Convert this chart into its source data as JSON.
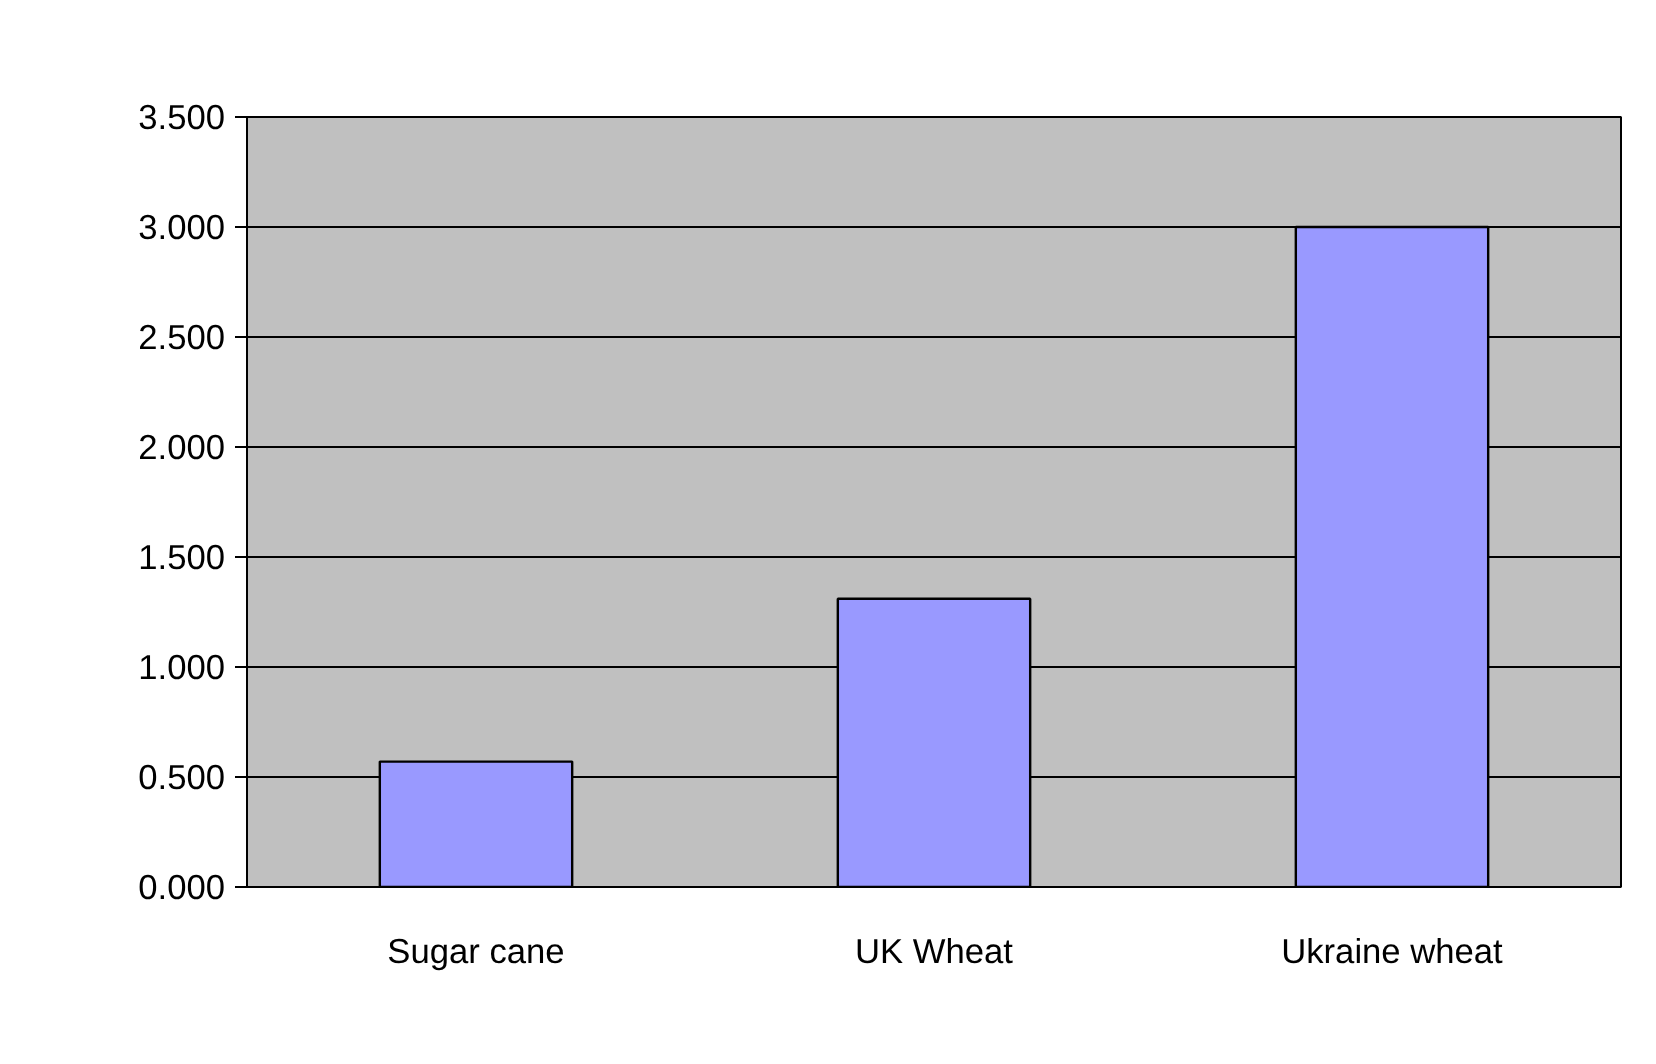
{
  "chart_data": {
    "type": "bar",
    "categories": [
      "Sugar cane",
      "UK Wheat",
      "Ukraine wheat"
    ],
    "values": [
      0.57,
      1.31,
      3.0
    ],
    "color": "#9999ff",
    "ylim": [
      0,
      3.5
    ],
    "yticks": [
      {
        "value": 0,
        "label": "0.000"
      },
      {
        "value": 0.5,
        "label": "0.500"
      },
      {
        "value": 1,
        "label": "1.000"
      },
      {
        "value": 1.5,
        "label": "1.500"
      },
      {
        "value": 2,
        "label": "2.000"
      },
      {
        "value": 2.5,
        "label": "2.500"
      },
      {
        "value": 3,
        "label": "3.000"
      },
      {
        "value": 3.5,
        "label": "3.500"
      }
    ],
    "grid": "y"
  }
}
